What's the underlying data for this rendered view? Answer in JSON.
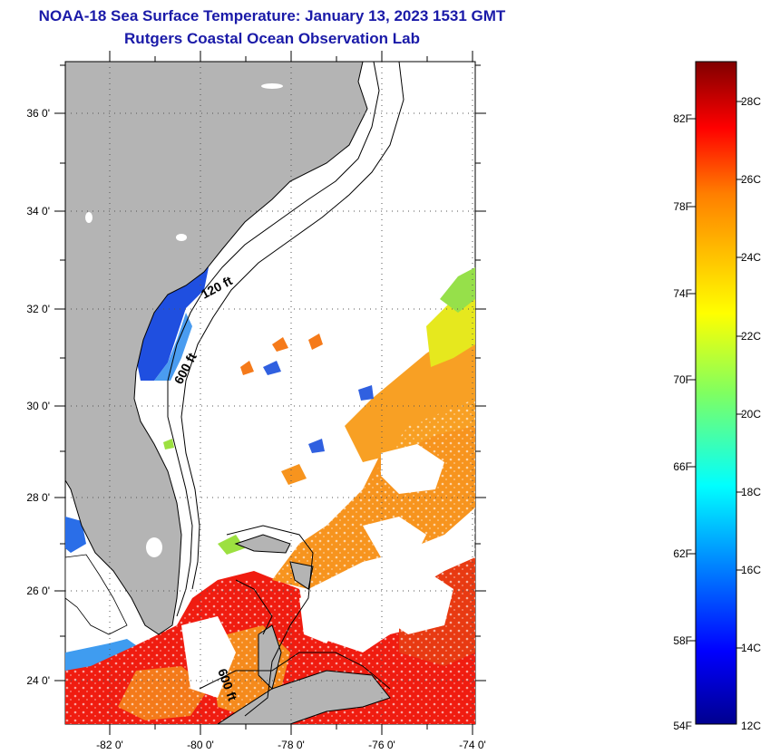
{
  "title": "NOAA-18 Sea Surface Temperature:  January 13, 2023 1531 GMT",
  "subtitle": "Rutgers Coastal Ocean Observation Lab",
  "map": {
    "lat_labels": [
      "36 0'",
      "34 0'",
      "32 0'",
      "30 0'",
      "28 0'",
      "26 0'",
      "24 0'"
    ],
    "lon_labels": [
      "-82 0'",
      "-80 0'",
      "-78 0'",
      "-76 0'",
      "-74 0'"
    ],
    "contour_labels": [
      "120 ft",
      "600 ft",
      "600 ft"
    ],
    "colors": {
      "land": "#b4b4b4",
      "cloud": "#ffffff",
      "outline": "#000000"
    }
  },
  "colorbar": {
    "f_labels": [
      "82F",
      "78F",
      "74F",
      "70F",
      "66F",
      "62F",
      "58F",
      "54F"
    ],
    "c_labels": [
      "28C",
      "26C",
      "24C",
      "22C",
      "20C",
      "18C",
      "16C",
      "14C",
      "12C"
    ],
    "min_c": 12,
    "max_c": 29.4
  }
}
